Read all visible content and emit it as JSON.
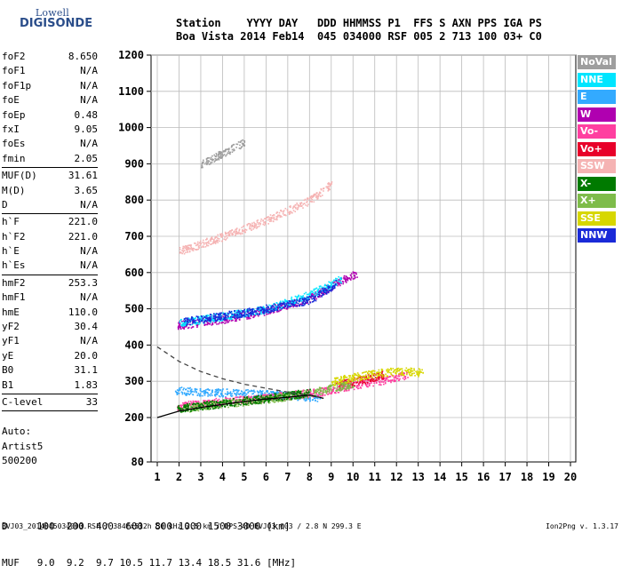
{
  "logo": {
    "line1": "Lowell",
    "line2": "DIGISONDE"
  },
  "header": {
    "row1": "Station    YYYY DAY   DDD HHMMSS P1  FFS S AXN PPS IGA PS",
    "row2": "Boa Vista 2014 Feb14  045 034000 RSF 005 2 713 100 03+ C0"
  },
  "params": [
    {
      "name": "foF2",
      "value": "8.650"
    },
    {
      "name": "foF1",
      "value": "N/A"
    },
    {
      "name": "foF1p",
      "value": "N/A"
    },
    {
      "name": "foE",
      "value": "N/A"
    },
    {
      "name": "foEp",
      "value": "0.48"
    },
    {
      "name": "fxI",
      "value": "9.05"
    },
    {
      "name": "foEs",
      "value": "N/A"
    },
    {
      "name": "fmin",
      "value": "2.05"
    },
    {
      "sep": true
    },
    {
      "name": "MUF(D)",
      "value": "31.61"
    },
    {
      "name": "M(D)",
      "value": "3.65"
    },
    {
      "name": "D",
      "value": "N/A"
    },
    {
      "sep": true
    },
    {
      "name": "h`F",
      "value": "221.0"
    },
    {
      "name": "h`F2",
      "value": "221.0"
    },
    {
      "name": "h`E",
      "value": "N/A"
    },
    {
      "name": "h`Es",
      "value": "N/A"
    },
    {
      "sep": true
    },
    {
      "name": "hmF2",
      "value": "253.3"
    },
    {
      "name": "hmF1",
      "value": "N/A"
    },
    {
      "name": "hmE",
      "value": "110.0"
    },
    {
      "name": "yF2",
      "value": "30.4"
    },
    {
      "name": "yF1",
      "value": "N/A"
    },
    {
      "name": "yE",
      "value": "20.0"
    },
    {
      "name": "B0",
      "value": "31.1"
    },
    {
      "name": "B1",
      "value": "1.83"
    },
    {
      "sep": true
    },
    {
      "name": "C-level",
      "value": "33"
    },
    {
      "sep": true
    }
  ],
  "artist": {
    "line1": "Auto:",
    "line2": "Artist5",
    "line3": "500200"
  },
  "legend": [
    {
      "label": "NoVal",
      "color": "#9e9e9e"
    },
    {
      "label": "NNE",
      "color": "#00e5ff"
    },
    {
      "label": "E",
      "color": "#33aaff"
    },
    {
      "label": "W",
      "color": "#b000b0"
    },
    {
      "label": "Vo-",
      "color": "#ff3fa0"
    },
    {
      "label": "Vo+",
      "color": "#e8002a"
    },
    {
      "label": "SSW",
      "color": "#f5b3b3"
    },
    {
      "label": "X-",
      "color": "#007a00"
    },
    {
      "label": "X+",
      "color": "#7ebc4a"
    },
    {
      "label": "SSE",
      "color": "#d7d700"
    },
    {
      "label": "NNW",
      "color": "#1a2ad8"
    }
  ],
  "footer": {
    "d_row": "D     100  200  400  600  800 1000 1500 3000 [km]",
    "muf_row": "MUF   9.0  9.2  9.7 10.5 11.7 13.4 18.5 31.6 [MHz]",
    "file_info": "BVJ03_2014045034000.RSF / 384fx512h 50 kHz 2.5 km / DPS-4D BVJ03 003 / 2.8 N 299.3 E",
    "version": "Ion2Png v. 1.3.17"
  },
  "chart_data": {
    "type": "scatter",
    "xlim": [
      1,
      20
    ],
    "ylim": [
      80,
      1200
    ],
    "x_ticks": [
      1,
      2,
      3,
      4,
      5,
      6,
      7,
      8,
      9,
      10,
      11,
      12,
      13,
      14,
      15,
      16,
      17,
      18,
      19,
      20
    ],
    "y_ticks": [
      80,
      200,
      300,
      400,
      500,
      600,
      700,
      800,
      900,
      1000,
      1100,
      1200
    ],
    "grid": true,
    "series": [
      {
        "name": "E",
        "color": "#33aaff",
        "trace": [
          [
            1.8,
            275
          ],
          [
            3,
            272
          ],
          [
            5,
            268
          ],
          [
            7,
            262
          ],
          [
            8.5,
            256
          ]
        ]
      },
      {
        "name": "Vo-",
        "color": "#ff3fa0",
        "trace": [
          [
            1.9,
            232
          ],
          [
            3,
            240
          ],
          [
            5,
            250
          ],
          [
            7,
            262
          ],
          [
            8.5,
            272
          ],
          [
            10,
            290
          ],
          [
            11.5,
            305
          ],
          [
            12.5,
            320
          ]
        ]
      },
      {
        "name": "Vo+",
        "color": "#e8002a",
        "trace": [
          [
            9.2,
            290
          ],
          [
            10,
            300
          ],
          [
            10.8,
            310
          ],
          [
            11.4,
            320
          ]
        ]
      },
      {
        "name": "X+",
        "color": "#7ebc4a",
        "trace": [
          [
            2,
            225
          ],
          [
            4,
            238
          ],
          [
            6,
            252
          ],
          [
            8,
            268
          ],
          [
            10,
            295
          ]
        ]
      },
      {
        "name": "X-",
        "color": "#007a00",
        "trace": [
          [
            1.9,
            226
          ],
          [
            4,
            240
          ],
          [
            6,
            254
          ],
          [
            8,
            270
          ]
        ]
      },
      {
        "name": "SSE",
        "color": "#d7d700",
        "trace": [
          [
            9,
            300
          ],
          [
            10.5,
            318
          ],
          [
            12,
            330
          ],
          [
            13.2,
            325
          ]
        ]
      },
      {
        "name": "W",
        "color": "#b000b0",
        "trace": [
          [
            1.9,
            455
          ],
          [
            4,
            472
          ],
          [
            6,
            495
          ],
          [
            8,
            530
          ],
          [
            9.5,
            580
          ],
          [
            10.2,
            600
          ]
        ]
      },
      {
        "name": "NNE",
        "color": "#00e5ff",
        "trace": [
          [
            2,
            462
          ],
          [
            4,
            480
          ],
          [
            6,
            500
          ],
          [
            8,
            540
          ],
          [
            9.5,
            585
          ]
        ]
      },
      {
        "name": "NNW",
        "color": "#1a2ad8",
        "trace": [
          [
            2.2,
            466
          ],
          [
            5,
            490
          ],
          [
            8,
            525
          ],
          [
            9.2,
            570
          ]
        ]
      },
      {
        "name": "SSW",
        "color": "#f5b3b3",
        "trace": [
          [
            2,
            660
          ],
          [
            4,
            700
          ],
          [
            6,
            745
          ],
          [
            8,
            800
          ],
          [
            9,
            845
          ]
        ]
      },
      {
        "name": "NoVal",
        "color": "#9e9e9e",
        "trace": [
          [
            3,
            900
          ],
          [
            4,
            930
          ],
          [
            5,
            960
          ]
        ]
      }
    ],
    "curves": [
      {
        "name": "profile",
        "points": [
          [
            1,
            200
          ],
          [
            2,
            218
          ],
          [
            3,
            228
          ],
          [
            4,
            236
          ],
          [
            5,
            244
          ],
          [
            6,
            251
          ],
          [
            7,
            256
          ],
          [
            8,
            262
          ],
          [
            8.65,
            253
          ]
        ]
      },
      {
        "name": "dashed",
        "points": [
          [
            1,
            395
          ],
          [
            2,
            355
          ],
          [
            3,
            327
          ],
          [
            4,
            307
          ],
          [
            5,
            292
          ],
          [
            6,
            281
          ],
          [
            7,
            270
          ],
          [
            8,
            260
          ],
          [
            8.5,
            256
          ]
        ]
      }
    ]
  }
}
